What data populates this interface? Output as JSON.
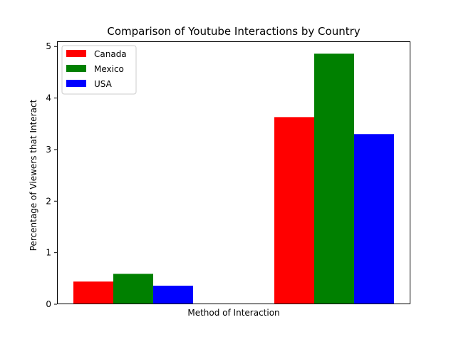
{
  "chart_data": {
    "type": "bar",
    "title": "Comparison of Youtube Interactions by Country",
    "xlabel": "Method of Interaction",
    "ylabel": "Percentage of Viewers that Interact",
    "categories": [
      "",
      ""
    ],
    "series": [
      {
        "name": "Canada",
        "color": "#ff0000",
        "values": [
          0.44,
          3.63
        ]
      },
      {
        "name": "Mexico",
        "color": "#008000",
        "values": [
          0.59,
          4.86
        ]
      },
      {
        "name": "USA",
        "color": "#0000ff",
        "values": [
          0.36,
          3.3
        ]
      }
    ],
    "ylim": [
      0,
      5.1
    ],
    "yticks": [
      "0",
      "1",
      "2",
      "3",
      "4",
      "5"
    ],
    "legend": "top-left",
    "grid": false
  }
}
